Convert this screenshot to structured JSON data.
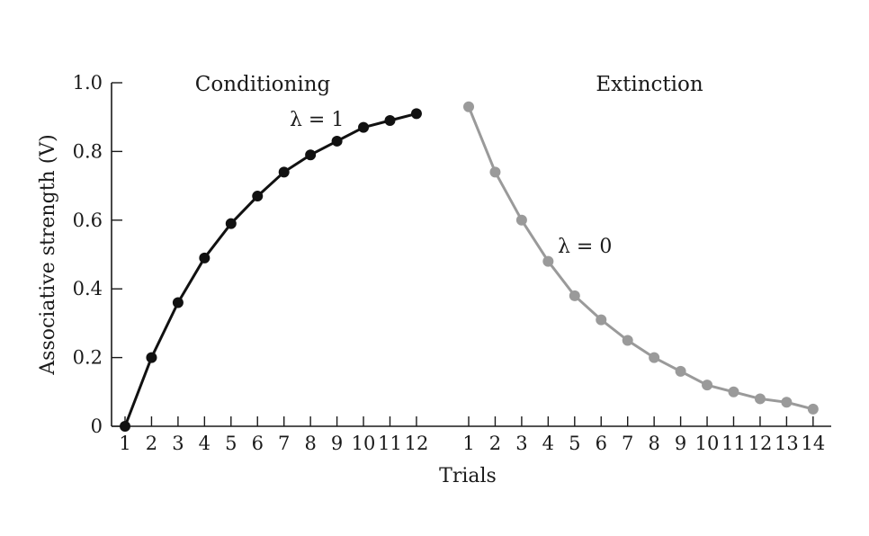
{
  "chart_data": {
    "type": "line",
    "xlabel": "Trials",
    "ylabel": "Associative strength (V)",
    "ylim": [
      0,
      1.0
    ],
    "yticks": [
      0,
      0.2,
      0.4,
      0.6,
      0.8,
      1.0
    ],
    "ytick_labels": [
      "0",
      "0.2",
      "0.4",
      "0.6",
      "0.8",
      "1.0"
    ],
    "grid": false,
    "series": [
      {
        "name": "Conditioning",
        "annotation": "λ = 1",
        "color": "#111111",
        "x": [
          1,
          2,
          3,
          4,
          5,
          6,
          7,
          8,
          9,
          10,
          11,
          12
        ],
        "values": [
          0.0,
          0.2,
          0.36,
          0.49,
          0.59,
          0.67,
          0.74,
          0.79,
          0.83,
          0.87,
          0.89,
          0.91
        ]
      },
      {
        "name": "Extinction",
        "annotation": "λ = 0",
        "color": "#9a9a9a",
        "x": [
          1,
          2,
          3,
          4,
          5,
          6,
          7,
          8,
          9,
          10,
          11,
          12,
          13,
          14
        ],
        "values": [
          0.93,
          0.74,
          0.6,
          0.48,
          0.38,
          0.31,
          0.25,
          0.2,
          0.16,
          0.12,
          0.1,
          0.08,
          0.07,
          0.05
        ]
      }
    ]
  }
}
